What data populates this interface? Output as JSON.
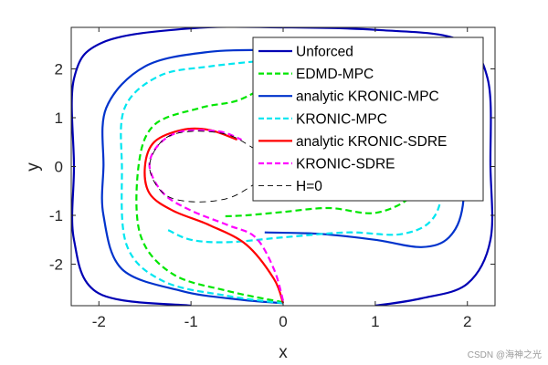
{
  "watermark": "CSDN @海神之光",
  "chart_data": {
    "type": "line",
    "title": "",
    "xlabel": "x",
    "ylabel": "y",
    "xlim": [
      -2.3,
      2.3
    ],
    "ylim": [
      -2.85,
      2.85
    ],
    "xticks": [
      -2,
      -1,
      0,
      1,
      2
    ],
    "yticks": [
      -2,
      -1,
      0,
      1,
      2
    ],
    "xtick_labels": [
      "-2",
      "-1",
      "0",
      "1",
      "2"
    ],
    "ytick_labels": [
      "-2",
      "-1",
      "0",
      "1",
      "2"
    ],
    "grid": false,
    "legend_position": "top-right",
    "series": [
      {
        "name": "Unforced",
        "color": "#0000b4",
        "dash": "solid",
        "points": [
          [
            -1.0,
            -2.85
          ],
          [
            -2.0,
            -2.6
          ],
          [
            -2.27,
            -1.5
          ],
          [
            -2.27,
            0.0
          ],
          [
            -2.27,
            1.8
          ],
          [
            -1.95,
            2.55
          ],
          [
            -1.0,
            2.83
          ],
          [
            0.0,
            2.85
          ],
          [
            1.0,
            2.8
          ],
          [
            1.9,
            2.6
          ],
          [
            2.22,
            1.8
          ],
          [
            2.25,
            0.0
          ],
          [
            2.25,
            -1.5
          ],
          [
            2.0,
            -2.4
          ],
          [
            1.5,
            -2.7
          ],
          [
            1.0,
            -2.85
          ]
        ]
      },
      {
        "name": "EDMD-MPC",
        "color": "#00e600",
        "dash": "dashed",
        "points": [
          [
            0.0,
            -2.78
          ],
          [
            -0.6,
            -2.55
          ],
          [
            -1.2,
            -2.2
          ],
          [
            -1.55,
            -1.4
          ],
          [
            -1.57,
            0.0
          ],
          [
            -1.4,
            0.85
          ],
          [
            -0.9,
            1.2
          ],
          [
            -0.5,
            1.35
          ],
          [
            -0.2,
            1.65
          ],
          [
            0.0,
            2.0
          ],
          [
            0.5,
            2.3
          ],
          [
            0.8,
            2.4
          ],
          [
            1.2,
            2.1
          ],
          [
            1.5,
            1.5
          ],
          [
            1.55,
            0.7
          ],
          [
            1.55,
            0.0
          ],
          [
            1.4,
            -0.6
          ],
          [
            1.0,
            -0.95
          ],
          [
            0.5,
            -0.85
          ],
          [
            0.0,
            -0.93
          ],
          [
            -0.4,
            -1.0
          ],
          [
            -0.65,
            -1.02
          ]
        ]
      },
      {
        "name": "analytic KRONIC-MPC",
        "color": "#0033cc",
        "dash": "solid",
        "points": [
          [
            0.0,
            -2.8
          ],
          [
            -0.5,
            -2.72
          ],
          [
            -1.1,
            -2.55
          ],
          [
            -1.75,
            -2.1
          ],
          [
            -1.95,
            -1.0
          ],
          [
            -1.95,
            0.0
          ],
          [
            -1.92,
            1.2
          ],
          [
            -1.5,
            2.05
          ],
          [
            -0.8,
            2.35
          ],
          [
            0.0,
            2.4
          ],
          [
            0.8,
            2.55
          ],
          [
            1.6,
            2.45
          ],
          [
            1.85,
            1.8
          ],
          [
            1.95,
            0.5
          ],
          [
            1.95,
            -0.8
          ],
          [
            1.8,
            -1.45
          ],
          [
            1.5,
            -1.65
          ],
          [
            1.0,
            -1.5
          ],
          [
            0.4,
            -1.38
          ],
          [
            -0.2,
            -1.35
          ]
        ]
      },
      {
        "name": "KRONIC-MPC",
        "color": "#00e6f0",
        "dash": "dashed",
        "points": [
          [
            0.0,
            -2.8
          ],
          [
            -0.6,
            -2.65
          ],
          [
            -1.3,
            -2.35
          ],
          [
            -1.7,
            -1.6
          ],
          [
            -1.75,
            0.0
          ],
          [
            -1.72,
            1.2
          ],
          [
            -1.35,
            1.85
          ],
          [
            -0.8,
            2.05
          ],
          [
            0.0,
            2.2
          ],
          [
            0.8,
            2.3
          ],
          [
            1.5,
            2.1
          ],
          [
            1.72,
            1.2
          ],
          [
            1.75,
            0.0
          ],
          [
            1.65,
            -1.0
          ],
          [
            1.3,
            -1.38
          ],
          [
            0.7,
            -1.35
          ],
          [
            0.0,
            -1.45
          ],
          [
            -0.6,
            -1.55
          ],
          [
            -1.0,
            -1.5
          ],
          [
            -1.25,
            -1.3
          ]
        ]
      },
      {
        "name": "analytic KRONIC-SDRE",
        "color": "#ff0000",
        "dash": "solid",
        "points": [
          [
            0.0,
            -2.8
          ],
          [
            -0.1,
            -2.3
          ],
          [
            -0.4,
            -1.6
          ],
          [
            -0.8,
            -1.2
          ],
          [
            -1.2,
            -0.9
          ],
          [
            -1.45,
            -0.55
          ],
          [
            -1.5,
            0.0
          ],
          [
            -1.4,
            0.5
          ],
          [
            -1.1,
            0.75
          ],
          [
            -0.8,
            0.75
          ],
          [
            -0.5,
            0.55
          ]
        ]
      },
      {
        "name": "KRONIC-SDRE",
        "color": "#ff00ff",
        "dash": "dashed",
        "points": [
          [
            0.0,
            -2.75
          ],
          [
            -0.1,
            -2.1
          ],
          [
            -0.3,
            -1.45
          ],
          [
            -0.6,
            -1.2
          ],
          [
            -1.0,
            -0.9
          ],
          [
            -1.3,
            -0.55
          ],
          [
            -1.45,
            0.0
          ],
          [
            -1.35,
            0.45
          ],
          [
            -1.1,
            0.72
          ],
          [
            -0.7,
            0.72
          ],
          [
            -0.45,
            0.55
          ]
        ]
      },
      {
        "name": "H=0",
        "color": "#000000",
        "dash": "thin-dashed",
        "points": [
          [
            0.0,
            0.0
          ],
          [
            -0.3,
            0.35
          ],
          [
            -0.6,
            0.65
          ],
          [
            -1.0,
            0.72
          ],
          [
            -1.3,
            0.55
          ],
          [
            -1.45,
            0.0
          ],
          [
            -1.3,
            -0.55
          ],
          [
            -1.0,
            -0.72
          ],
          [
            -0.6,
            -0.65
          ],
          [
            -0.3,
            -0.35
          ],
          [
            0.0,
            0.0
          ]
        ]
      }
    ]
  }
}
